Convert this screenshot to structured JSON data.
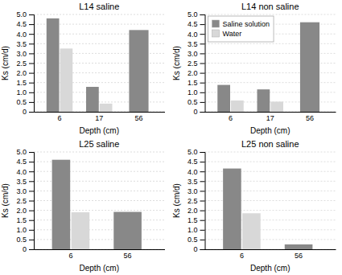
{
  "chart_data": [
    {
      "type": "bar",
      "title": "L14 saline",
      "xlabel": "Depth (cm)",
      "ylabel": "Ks (cm/d)",
      "categories": [
        "6",
        "17",
        "56"
      ],
      "series": [
        {
          "color": "#888888",
          "values": [
            4.8,
            1.28,
            4.2
          ]
        },
        {
          "color": "#d8d8d8",
          "values": [
            3.25,
            0.42,
            null
          ]
        }
      ],
      "ylim": [
        0,
        5
      ],
      "yticks": [
        0,
        0.5,
        {
          "value": 1,
          "label": "1.0"
        },
        1.5,
        {
          "value": 2,
          "label": "2.0"
        },
        2.5,
        {
          "value": 3,
          "label": "3.0"
        },
        3.5,
        {
          "value": 4,
          "label": "4.0"
        },
        4.5,
        {
          "value": 5,
          "label": "5.0"
        }
      ],
      "grid": true
    },
    {
      "type": "bar",
      "title": "L14 non saline",
      "xlabel": "Depth (cm)",
      "ylabel": "Ks (cm/d)",
      "categories": [
        "6",
        "17",
        "56"
      ],
      "series": [
        {
          "name": "Saline solution",
          "color": "#888888",
          "values": [
            1.38,
            1.15,
            4.6
          ]
        },
        {
          "name": "Water",
          "color": "#d8d8d8",
          "values": [
            0.58,
            0.52,
            null
          ]
        }
      ],
      "ylim": [
        0,
        5
      ],
      "yticks": [
        0,
        0.5,
        {
          "value": 1,
          "label": "1.0"
        },
        1.5,
        {
          "value": 2,
          "label": "2.0"
        },
        2.5,
        {
          "value": 3,
          "label": "3.0"
        },
        3.5,
        {
          "value": 4,
          "label": "4.0"
        },
        4.5,
        {
          "value": 5,
          "label": "5.0"
        }
      ],
      "grid": true,
      "legend": "upper left"
    },
    {
      "type": "bar",
      "title": "L25 saline",
      "xlabel": "Depth (cm)",
      "ylabel": "Ks (cm/d)",
      "categories": [
        "6",
        "56"
      ],
      "series": [
        {
          "color": "#888888",
          "values": [
            4.6,
            1.92
          ]
        },
        {
          "color": "#d8d8d8",
          "values": [
            1.9,
            null
          ]
        }
      ],
      "ylim": [
        0,
        5
      ],
      "yticks": [
        0,
        0.5,
        {
          "value": 1,
          "label": "1.0"
        },
        1.5,
        {
          "value": 2,
          "label": "2.0"
        },
        2.5,
        {
          "value": 3,
          "label": "3.0"
        },
        3.5,
        {
          "value": 4,
          "label": "4.0"
        },
        4.5,
        {
          "value": 5,
          "label": "5.0"
        }
      ],
      "grid": true
    },
    {
      "type": "bar",
      "title": "L25 non saline",
      "xlabel": "Depth (cm)",
      "ylabel": "Ks (cm/d)",
      "categories": [
        "6",
        "56"
      ],
      "series": [
        {
          "color": "#888888",
          "values": [
            4.15,
            0.25
          ]
        },
        {
          "color": "#d8d8d8",
          "values": [
            1.85,
            null
          ]
        }
      ],
      "ylim": [
        0,
        5
      ],
      "yticks": [
        0,
        0.5,
        {
          "value": 1,
          "label": "1.0"
        },
        1.5,
        {
          "value": 2,
          "label": "2.0"
        },
        2.5,
        {
          "value": 3,
          "label": "3.0"
        },
        3.5,
        {
          "value": 4,
          "label": "4.0"
        },
        4.5,
        {
          "value": 5,
          "label": "5.0"
        }
      ],
      "grid": true
    }
  ]
}
